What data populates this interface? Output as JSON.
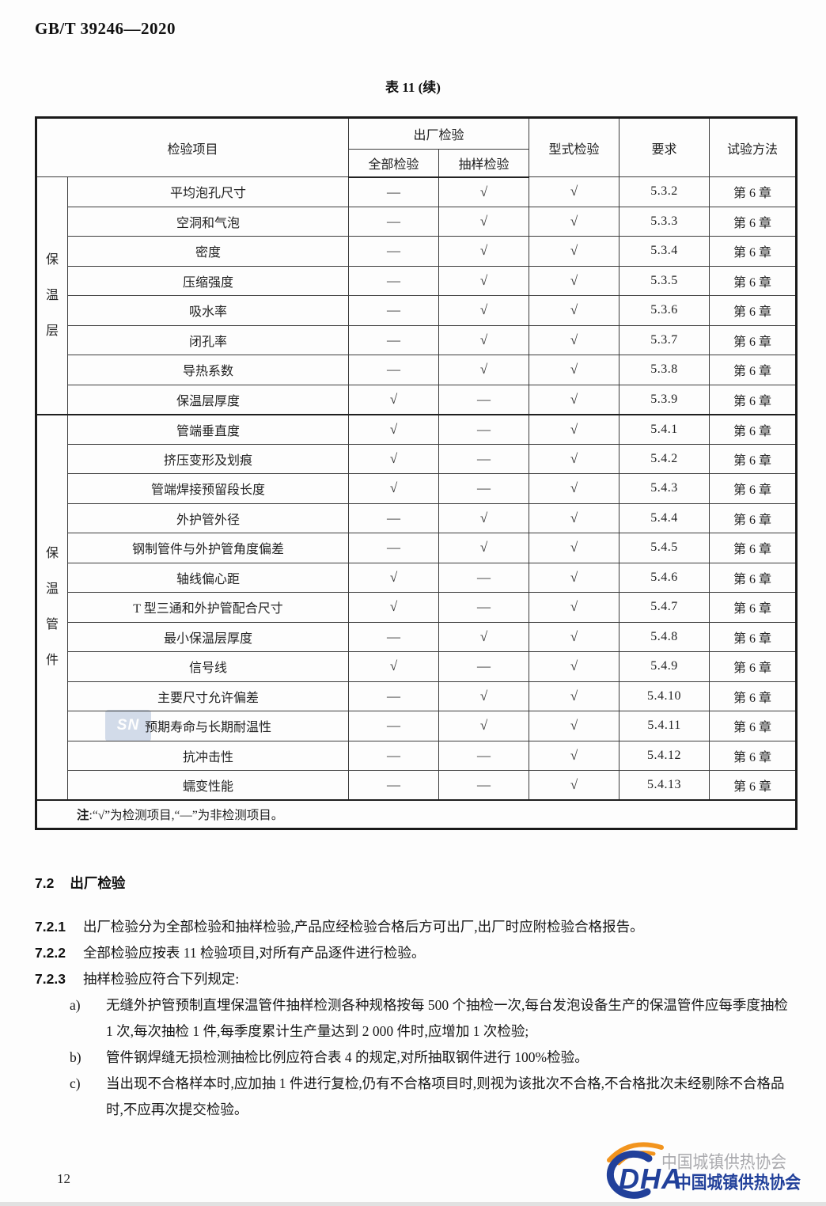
{
  "doc": {
    "standard_code": "GB/T 39246—2020",
    "page_number": "12"
  },
  "table": {
    "title": "表 11 (续)",
    "header": {
      "item": "检验项目",
      "factory": "出厂检验",
      "full": "全部检验",
      "sampling": "抽样检验",
      "type": "型式检验",
      "requirement": "要求",
      "method": "试验方法"
    },
    "groups": [
      {
        "label": "保温层",
        "rowspan": 8
      },
      {
        "label": "保温管件",
        "rowspan": 13
      }
    ],
    "rows": [
      {
        "item": "平均泡孔尺寸",
        "full": "—",
        "sampling": "√",
        "type": "√",
        "req": "5.3.2",
        "method": "第 6 章"
      },
      {
        "item": "空洞和气泡",
        "full": "—",
        "sampling": "√",
        "type": "√",
        "req": "5.3.3",
        "method": "第 6 章"
      },
      {
        "item": "密度",
        "full": "—",
        "sampling": "√",
        "type": "√",
        "req": "5.3.4",
        "method": "第 6 章"
      },
      {
        "item": "压缩强度",
        "full": "—",
        "sampling": "√",
        "type": "√",
        "req": "5.3.5",
        "method": "第 6 章"
      },
      {
        "item": "吸水率",
        "full": "—",
        "sampling": "√",
        "type": "√",
        "req": "5.3.6",
        "method": "第 6 章"
      },
      {
        "item": "闭孔率",
        "full": "—",
        "sampling": "√",
        "type": "√",
        "req": "5.3.7",
        "method": "第 6 章"
      },
      {
        "item": "导热系数",
        "full": "—",
        "sampling": "√",
        "type": "√",
        "req": "5.3.8",
        "method": "第 6 章"
      },
      {
        "item": "保温层厚度",
        "full": "√",
        "sampling": "—",
        "type": "√",
        "req": "5.3.9",
        "method": "第 6 章"
      },
      {
        "item": "管端垂直度",
        "full": "√",
        "sampling": "—",
        "type": "√",
        "req": "5.4.1",
        "method": "第 6 章"
      },
      {
        "item": "挤压变形及划痕",
        "full": "√",
        "sampling": "—",
        "type": "√",
        "req": "5.4.2",
        "method": "第 6 章"
      },
      {
        "item": "管端焊接预留段长度",
        "full": "√",
        "sampling": "—",
        "type": "√",
        "req": "5.4.3",
        "method": "第 6 章"
      },
      {
        "item": "外护管外径",
        "full": "—",
        "sampling": "√",
        "type": "√",
        "req": "5.4.4",
        "method": "第 6 章"
      },
      {
        "item": "钢制管件与外护管角度偏差",
        "full": "—",
        "sampling": "√",
        "type": "√",
        "req": "5.4.5",
        "method": "第 6 章"
      },
      {
        "item": "轴线偏心距",
        "full": "√",
        "sampling": "—",
        "type": "√",
        "req": "5.4.6",
        "method": "第 6 章"
      },
      {
        "item": "T 型三通和外护管配合尺寸",
        "full": "√",
        "sampling": "—",
        "type": "√",
        "req": "5.4.7",
        "method": "第 6 章"
      },
      {
        "item": "最小保温层厚度",
        "full": "—",
        "sampling": "√",
        "type": "√",
        "req": "5.4.8",
        "method": "第 6 章"
      },
      {
        "item": "信号线",
        "full": "√",
        "sampling": "—",
        "type": "√",
        "req": "5.4.9",
        "method": "第 6 章"
      },
      {
        "item": "主要尺寸允许偏差",
        "full": "—",
        "sampling": "√",
        "type": "√",
        "req": "5.4.10",
        "method": "第 6 章"
      },
      {
        "item": "预期寿命与长期耐温性",
        "full": "—",
        "sampling": "√",
        "type": "√",
        "req": "5.4.11",
        "method": "第 6 章"
      },
      {
        "item": "抗冲击性",
        "full": "—",
        "sampling": "—",
        "type": "√",
        "req": "5.4.12",
        "method": "第 6 章"
      },
      {
        "item": "蠕变性能",
        "full": "—",
        "sampling": "—",
        "type": "√",
        "req": "5.4.13",
        "method": "第 6 章"
      }
    ],
    "note_label": "注",
    "note_text": ":“√”为检测项目,“—”为非检测项目。"
  },
  "body": {
    "heading": {
      "num": "7.2",
      "title": "出厂检验"
    },
    "paras": [
      {
        "num": "7.2.1",
        "text": "出厂检验分为全部检验和抽样检验,产品应经检验合格后方可出厂,出厂时应附检验合格报告。"
      },
      {
        "num": "7.2.2",
        "text": "全部检验应按表 11 检验项目,对所有产品逐件进行检验。"
      },
      {
        "num": "7.2.3",
        "text": "抽样检验应符合下列规定:"
      }
    ],
    "list": [
      {
        "marker": "a)",
        "text": "无缝外护管预制直埋保温管件抽样检测各种规格按每 500 个抽检一次,每台发泡设备生产的保温管件应每季度抽检 1 次,每次抽检 1 件,每季度累计生产量达到 2 000 件时,应增加 1 次检验;"
      },
      {
        "marker": "b)",
        "text": "管件钢焊缝无损检测抽检比例应符合表 4 的规定,对所抽取钢件进行 100%检验。"
      },
      {
        "marker": "c)",
        "text": "当出现不合格样本时,应加抽 1 件进行复检,仍有不合格项目时,则视为该批次不合格,不合格批次未经剔除不合格品时,不应再次提交检验。"
      }
    ]
  },
  "watermark": {
    "small_badge": "SN",
    "logo_acronym": "DHA",
    "logo_text": "中国城镇供热协会",
    "colors": {
      "blue": "#21409a",
      "orange": "#f2941e",
      "gray": "#9b9ba0"
    }
  }
}
